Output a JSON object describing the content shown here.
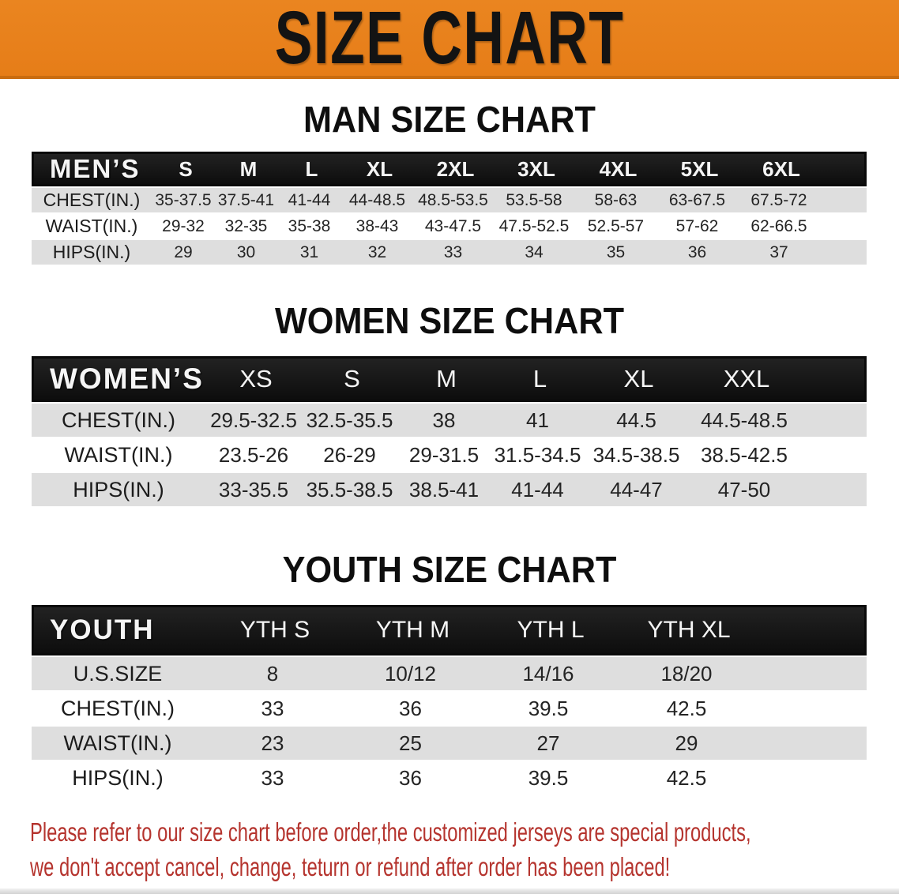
{
  "banner": {
    "title": "SIZE CHART",
    "bg_color": "#e8811e",
    "text_color": "#131313"
  },
  "sections": [
    {
      "id": "men",
      "heading": "MAN SIZE CHART",
      "table": {
        "header_label": "MEN’S",
        "sizes": [
          "S",
          "M",
          "L",
          "XL",
          "2XL",
          "3XL",
          "4XL",
          "5XL",
          "6XL"
        ],
        "rows": [
          {
            "label": "CHEST(IN.)",
            "values": [
              "35-37.5",
              "37.5-41",
              "41-44",
              "44-48.5",
              "48.5-53.5",
              "53.5-58",
              "58-63",
              "63-67.5",
              "67.5-72"
            ]
          },
          {
            "label": "WAIST(IN.)",
            "values": [
              "29-32",
              "32-35",
              "35-38",
              "38-43",
              "43-47.5",
              "47.5-52.5",
              "52.5-57",
              "57-62",
              "62-66.5"
            ]
          },
          {
            "label": "HIPS(IN.)",
            "values": [
              "29",
              "30",
              "31",
              "32",
              "33",
              "34",
              "35",
              "36",
              "37"
            ]
          }
        ]
      }
    },
    {
      "id": "women",
      "heading": "WOMEN SIZE CHART",
      "table": {
        "header_label": "WOMEN’S",
        "sizes": [
          "XS",
          "S",
          "M",
          "L",
          "XL",
          "XXL"
        ],
        "rows": [
          {
            "label": "CHEST(IN.)",
            "values": [
              "29.5-32.5",
              "32.5-35.5",
              "38",
              "41",
              "44.5",
              "44.5-48.5"
            ]
          },
          {
            "label": "WAIST(IN.)",
            "values": [
              "23.5-26",
              "26-29",
              "29-31.5",
              "31.5-34.5",
              "34.5-38.5",
              "38.5-42.5"
            ]
          },
          {
            "label": "HIPS(IN.)",
            "values": [
              "33-35.5",
              "35.5-38.5",
              "38.5-41",
              "41-44",
              "44-47",
              "47-50"
            ]
          }
        ]
      }
    },
    {
      "id": "youth",
      "heading": "YOUTH SIZE CHART",
      "table": {
        "header_label": "YOUTH",
        "sizes": [
          "YTH S",
          "YTH M",
          "YTH L",
          "YTH XL"
        ],
        "rows": [
          {
            "label": "U.S.SIZE",
            "values": [
              "8",
              "10/12",
              "14/16",
              "18/20"
            ]
          },
          {
            "label": "CHEST(IN.)",
            "values": [
              "33",
              "36",
              "39.5",
              "42.5"
            ]
          },
          {
            "label": "WAIST(IN.)",
            "values": [
              "23",
              "25",
              "27",
              "29"
            ]
          },
          {
            "label": "HIPS(IN.)",
            "values": [
              "33",
              "36",
              "39.5",
              "42.5"
            ]
          }
        ]
      }
    }
  ],
  "disclaimer": {
    "line1": "Please refer to our size chart before order,the customized jerseys are special products,",
    "line2": "we don't accept cancel, change, teturn or refund after order has been placed!",
    "color": "#b5342e"
  },
  "colors": {
    "row_stripe_gray": "#dedede",
    "table_header_black": "#141414"
  }
}
